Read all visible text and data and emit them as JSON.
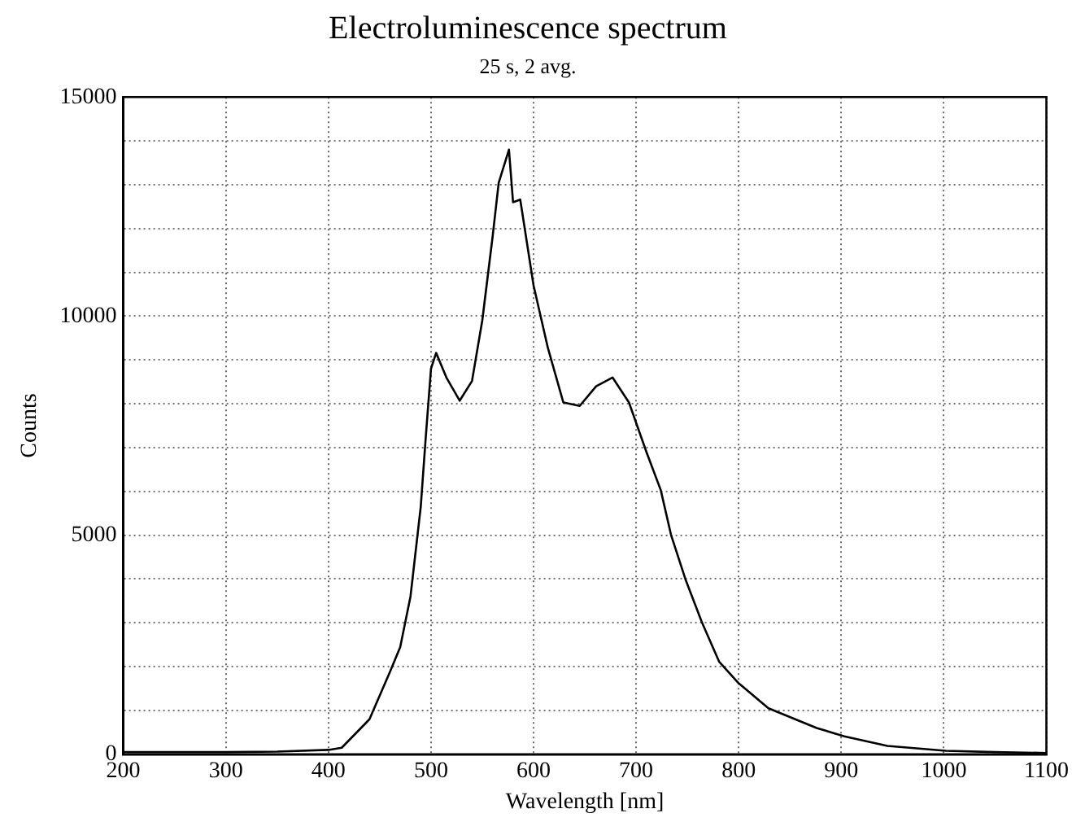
{
  "chart_data": {
    "type": "line",
    "title": "Electroluminescence spectrum",
    "subtitle": "25 s, 2 avg.",
    "xlabel": "Wavelength [nm]",
    "ylabel": "Counts",
    "x": [
      200,
      250,
      300,
      350,
      400,
      413,
      440,
      460,
      470,
      480,
      490,
      495,
      500,
      505,
      515,
      528,
      540,
      550,
      560,
      566,
      576,
      580,
      587,
      600,
      614,
      629,
      645,
      661,
      677,
      693,
      710,
      724,
      734,
      748,
      764,
      781,
      800,
      829,
      876,
      903,
      945,
      1002,
      1050,
      1100
    ],
    "series": [
      {
        "color": "#000000",
        "values": [
          50,
          50,
          50,
          60,
          100,
          150,
          800,
          1880,
          2450,
          3600,
          5650,
          7270,
          8800,
          9160,
          8600,
          8070,
          8520,
          9900,
          11800,
          13040,
          13800,
          12600,
          12660,
          10700,
          9270,
          8030,
          7950,
          8400,
          8600,
          8030,
          6900,
          6030,
          5010,
          4000,
          3020,
          2110,
          1620,
          1050,
          600,
          410,
          190,
          80,
          50,
          30
        ]
      }
    ],
    "xlim": [
      200,
      1100
    ],
    "xticks": [
      200,
      300,
      400,
      500,
      600,
      700,
      800,
      900,
      1000,
      1100
    ],
    "ylim": [
      0,
      15000
    ],
    "yticks": [
      0,
      {
        "value": 1000,
        "label": null
      },
      {
        "value": 2000,
        "label": null
      },
      {
        "value": 3000,
        "label": null
      },
      {
        "value": 4000,
        "label": null
      },
      5000,
      {
        "value": 6000,
        "label": null
      },
      {
        "value": 7000,
        "label": null
      },
      {
        "value": 8000,
        "label": null
      },
      {
        "value": 9000,
        "label": null
      },
      10000,
      {
        "value": 11000,
        "label": null
      },
      {
        "value": 12000,
        "label": null
      },
      {
        "value": 13000,
        "label": null
      },
      {
        "value": 14000,
        "label": null
      },
      15000
    ],
    "grid": true,
    "legend": false,
    "marker": "none",
    "line_style": "solid"
  }
}
